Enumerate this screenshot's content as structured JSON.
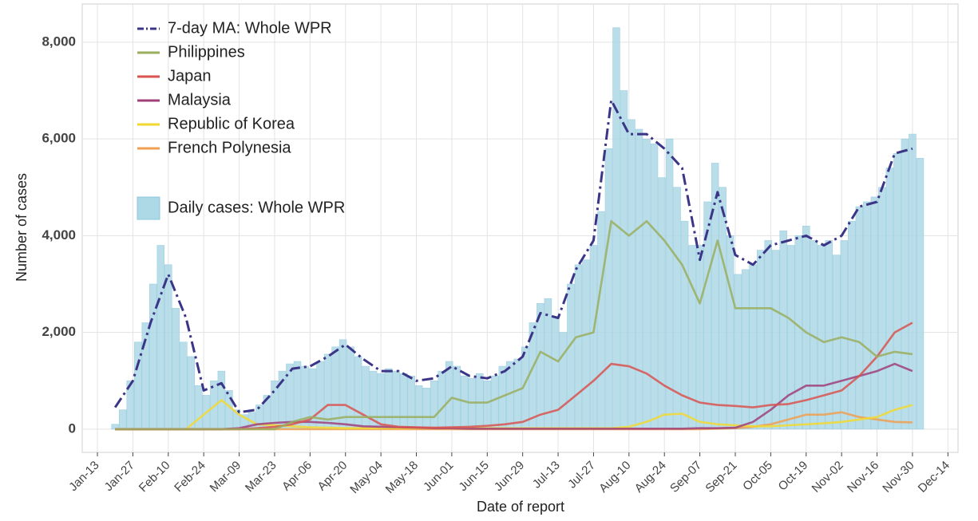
{
  "chart_data": {
    "type": "line",
    "xlabel": "Date of report",
    "ylabel": "Number of cases",
    "xlim": [
      -6,
      340
    ],
    "ylim": [
      -480,
      8790
    ],
    "xticks": [
      {
        "value": 0,
        "label": "Jan-13"
      },
      {
        "value": 14,
        "label": "Jan-27"
      },
      {
        "value": 28,
        "label": "Feb-10"
      },
      {
        "value": 42,
        "label": "Feb-24"
      },
      {
        "value": 56,
        "label": "Mar-09"
      },
      {
        "value": 70,
        "label": "Mar-23"
      },
      {
        "value": 84,
        "label": "Apr-06"
      },
      {
        "value": 98,
        "label": "Apr-20"
      },
      {
        "value": 112,
        "label": "May-04"
      },
      {
        "value": 126,
        "label": "May-18"
      },
      {
        "value": 140,
        "label": "Jun-01"
      },
      {
        "value": 154,
        "label": "Jun-15"
      },
      {
        "value": 168,
        "label": "Jun-29"
      },
      {
        "value": 182,
        "label": "Jul-13"
      },
      {
        "value": 196,
        "label": "Jul-27"
      },
      {
        "value": 210,
        "label": "Aug-10"
      },
      {
        "value": 224,
        "label": "Aug-24"
      },
      {
        "value": 238,
        "label": "Sep-07"
      },
      {
        "value": 252,
        "label": "Sep-21"
      },
      {
        "value": 266,
        "label": "Oct-05"
      },
      {
        "value": 280,
        "label": "Oct-19"
      },
      {
        "value": 294,
        "label": "Nov-02"
      },
      {
        "value": 308,
        "label": "Nov-16"
      },
      {
        "value": 322,
        "label": "Nov-30"
      },
      {
        "value": 336,
        "label": "Dec-14"
      }
    ],
    "yticks": [
      0,
      {
        "value": 2000,
        "label": "2,000"
      },
      {
        "value": 4000,
        "label": "4,000"
      },
      {
        "value": 6000,
        "label": "6,000"
      },
      {
        "value": 8000,
        "label": "8,000"
      }
    ],
    "grid": true,
    "legend": "upper left",
    "series": [
      {
        "name": "7-day MA: Whole WPR",
        "type": "line",
        "style": "dashdot",
        "color": "#3b3587",
        "x": [
          7,
          14,
          21,
          28,
          35,
          42,
          49,
          56,
          63,
          70,
          77,
          84,
          91,
          98,
          105,
          112,
          119,
          126,
          133,
          140,
          147,
          154,
          161,
          168,
          175,
          182,
          189,
          196,
          203,
          210,
          217,
          224,
          231,
          238,
          245,
          252,
          259,
          266,
          273,
          280,
          287,
          294,
          301,
          308,
          315,
          322
        ],
        "values": [
          450,
          1000,
          2200,
          3200,
          2300,
          800,
          950,
          350,
          400,
          800,
          1250,
          1300,
          1500,
          1750,
          1450,
          1200,
          1200,
          1000,
          1050,
          1300,
          1100,
          1050,
          1200,
          1500,
          2400,
          2300,
          3300,
          3900,
          6800,
          6100,
          6100,
          5800,
          5400,
          3500,
          4900,
          3600,
          3400,
          3800,
          3900,
          4000,
          3800,
          4000,
          4600,
          4700,
          5700,
          5800
        ]
      },
      {
        "name": "Philippines",
        "type": "line",
        "color": "#9aae5e",
        "x": [
          7,
          14,
          21,
          28,
          35,
          42,
          49,
          56,
          63,
          70,
          77,
          84,
          91,
          98,
          105,
          112,
          119,
          126,
          133,
          140,
          147,
          154,
          161,
          168,
          175,
          182,
          189,
          196,
          203,
          210,
          217,
          224,
          231,
          238,
          245,
          252,
          259,
          266,
          273,
          280,
          287,
          294,
          301,
          308,
          315,
          322
        ],
        "values": [
          0,
          0,
          0,
          0,
          0,
          0,
          0,
          0,
          0,
          0,
          150,
          250,
          200,
          250,
          250,
          250,
          250,
          250,
          250,
          650,
          550,
          550,
          700,
          850,
          1600,
          1400,
          1900,
          2000,
          4300,
          4000,
          4300,
          3900,
          3400,
          2600,
          3900,
          2500,
          2500,
          2500,
          2300,
          2000,
          1800,
          1900,
          1800,
          1500,
          1600,
          1550
        ]
      },
      {
        "name": "Japan",
        "type": "line",
        "color": "#d9534f",
        "x": [
          7,
          14,
          21,
          28,
          35,
          42,
          49,
          56,
          63,
          70,
          77,
          84,
          91,
          98,
          105,
          112,
          119,
          126,
          133,
          140,
          147,
          154,
          161,
          168,
          175,
          182,
          189,
          196,
          203,
          210,
          217,
          224,
          231,
          238,
          245,
          252,
          259,
          266,
          273,
          280,
          287,
          294,
          301,
          308,
          315,
          322
        ],
        "values": [
          0,
          0,
          0,
          0,
          0,
          0,
          0,
          0,
          20,
          50,
          100,
          200,
          500,
          500,
          300,
          100,
          50,
          40,
          30,
          40,
          50,
          70,
          100,
          150,
          300,
          400,
          700,
          1000,
          1350,
          1300,
          1150,
          900,
          700,
          550,
          500,
          480,
          450,
          500,
          520,
          600,
          700,
          800,
          1100,
          1500,
          2000,
          2200
        ]
      },
      {
        "name": "Malaysia",
        "type": "line",
        "color": "#a0407a",
        "x": [
          7,
          14,
          21,
          28,
          35,
          42,
          49,
          56,
          63,
          70,
          77,
          84,
          91,
          98,
          105,
          112,
          119,
          126,
          133,
          140,
          147,
          154,
          161,
          168,
          175,
          182,
          189,
          196,
          203,
          210,
          217,
          224,
          231,
          238,
          245,
          252,
          259,
          266,
          273,
          280,
          287,
          294,
          301,
          308,
          315,
          322
        ],
        "values": [
          0,
          0,
          0,
          0,
          0,
          0,
          0,
          20,
          100,
          130,
          150,
          150,
          130,
          100,
          60,
          50,
          40,
          30,
          20,
          20,
          10,
          10,
          10,
          10,
          10,
          10,
          10,
          10,
          10,
          10,
          10,
          10,
          10,
          20,
          20,
          30,
          150,
          400,
          700,
          900,
          900,
          1000,
          1100,
          1200,
          1350,
          1200
        ]
      },
      {
        "name": "Republic of Korea",
        "type": "line",
        "color": "#f2d930",
        "x": [
          7,
          14,
          21,
          28,
          35,
          42,
          49,
          56,
          63,
          70,
          77,
          84,
          91,
          98,
          105,
          112,
          119,
          126,
          133,
          140,
          147,
          154,
          161,
          168,
          175,
          182,
          189,
          196,
          203,
          210,
          217,
          224,
          231,
          238,
          245,
          252,
          259,
          266,
          273,
          280,
          287,
          294,
          301,
          308,
          315,
          322
        ],
        "values": [
          0,
          0,
          0,
          0,
          0,
          300,
          600,
          300,
          100,
          80,
          60,
          40,
          30,
          20,
          20,
          20,
          20,
          20,
          20,
          20,
          20,
          20,
          20,
          20,
          20,
          20,
          20,
          20,
          20,
          50,
          150,
          300,
          320,
          150,
          100,
          80,
          60,
          60,
          80,
          100,
          120,
          150,
          200,
          250,
          400,
          500
        ]
      },
      {
        "name": "French Polynesia",
        "type": "line",
        "color": "#f0a050",
        "x": [
          7,
          14,
          21,
          28,
          35,
          42,
          49,
          56,
          63,
          70,
          77,
          84,
          91,
          98,
          105,
          112,
          119,
          126,
          133,
          140,
          147,
          154,
          161,
          168,
          175,
          182,
          189,
          196,
          203,
          210,
          217,
          224,
          231,
          238,
          245,
          252,
          259,
          266,
          273,
          280,
          287,
          294,
          301,
          308,
          315,
          322
        ],
        "values": [
          0,
          0,
          0,
          0,
          0,
          0,
          0,
          0,
          0,
          0,
          0,
          0,
          0,
          0,
          0,
          0,
          0,
          0,
          0,
          0,
          0,
          0,
          0,
          0,
          0,
          0,
          0,
          0,
          0,
          0,
          0,
          0,
          0,
          0,
          10,
          20,
          50,
          100,
          200,
          300,
          300,
          350,
          250,
          200,
          150,
          140
        ]
      },
      {
        "name": "Daily cases: Whole WPR",
        "type": "bar",
        "color": "#add8e6",
        "x": [
          7,
          10,
          13,
          16,
          19,
          22,
          25,
          28,
          31,
          34,
          37,
          40,
          43,
          46,
          49,
          52,
          55,
          58,
          61,
          64,
          67,
          70,
          73,
          76,
          79,
          82,
          85,
          88,
          91,
          94,
          97,
          100,
          103,
          106,
          109,
          112,
          115,
          118,
          121,
          124,
          127,
          130,
          133,
          136,
          139,
          142,
          145,
          148,
          151,
          154,
          157,
          160,
          163,
          166,
          169,
          172,
          175,
          178,
          181,
          184,
          187,
          190,
          193,
          196,
          199,
          202,
          205,
          208,
          211,
          214,
          217,
          220,
          223,
          226,
          229,
          232,
          235,
          238,
          241,
          244,
          247,
          250,
          253,
          256,
          259,
          262,
          265,
          268,
          271,
          274,
          277,
          280,
          283,
          286,
          289,
          292,
          295,
          298,
          301,
          304,
          307,
          310,
          313,
          316,
          319,
          322,
          325
        ],
        "values": [
          100,
          400,
          1000,
          1800,
          2200,
          3000,
          3800,
          3400,
          2500,
          1800,
          1500,
          900,
          700,
          1000,
          1200,
          800,
          400,
          300,
          350,
          500,
          700,
          1000,
          1200,
          1350,
          1400,
          1300,
          1250,
          1400,
          1550,
          1700,
          1850,
          1700,
          1500,
          1300,
          1200,
          1150,
          1250,
          1200,
          1150,
          1100,
          900,
          850,
          1000,
          1200,
          1400,
          1300,
          1100,
          1050,
          1150,
          1000,
          1100,
          1300,
          1400,
          1450,
          1700,
          2200,
          2600,
          2700,
          2300,
          2000,
          3000,
          3400,
          3500,
          3800,
          4500,
          5800,
          8300,
          7000,
          6400,
          6200,
          6000,
          5900,
          5200,
          6000,
          5000,
          4300,
          3800,
          3800,
          4700,
          5500,
          5000,
          4000,
          3200,
          3300,
          3400,
          3700,
          3900,
          3700,
          4100,
          3800,
          4000,
          4200,
          3900,
          3800,
          3900,
          3600,
          3900,
          4300,
          4600,
          4700,
          4800,
          5000,
          5400,
          5700,
          6000,
          6100,
          5600
        ]
      }
    ]
  }
}
